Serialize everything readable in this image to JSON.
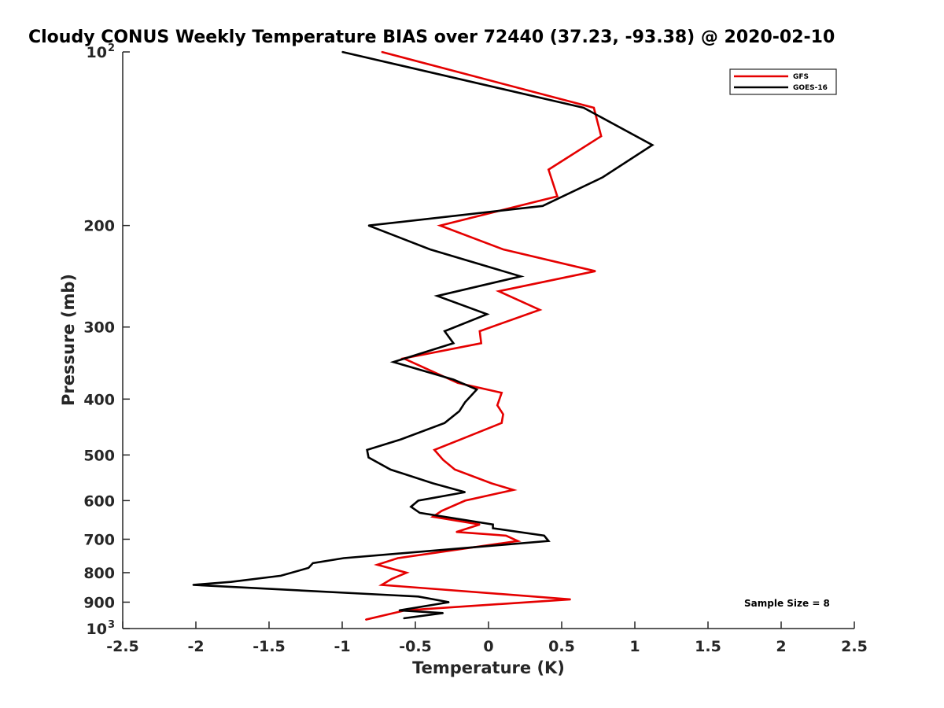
{
  "chart_data": {
    "type": "line",
    "title": "Cloudy CONUS Weekly Temperature BIAS over 72440 (37.23, -93.38) @ 2020-02-10",
    "xlabel": "Temperature (K)",
    "ylabel": "Pressure (mb)",
    "xlim": [
      -2.5,
      2.5
    ],
    "ylim": [
      100,
      1000
    ],
    "yscale": "log",
    "y_reversed": true,
    "grid": false,
    "legend_position": "top-right",
    "x_ticks": [
      -2.5,
      -2,
      -1.5,
      -1,
      -0.5,
      0,
      0.5,
      1,
      1.5,
      2,
      2.5
    ],
    "x_tick_labels": [
      "-2.5",
      "-2",
      "-1.5",
      "-1",
      "-0.5",
      "0",
      "0.5",
      "1",
      "1.5",
      "2",
      "2.5"
    ],
    "y_ticks": [
      {
        "value": 100,
        "label": "10",
        "sup": "2"
      },
      {
        "value": 200,
        "label": "200"
      },
      {
        "value": 300,
        "label": "300"
      },
      {
        "value": 400,
        "label": "400"
      },
      {
        "value": 500,
        "label": "500"
      },
      {
        "value": 600,
        "label": "600"
      },
      {
        "value": 700,
        "label": "700"
      },
      {
        "value": 800,
        "label": "800"
      },
      {
        "value": 900,
        "label": "900"
      },
      {
        "value": 1000,
        "label": "10",
        "sup": "3"
      }
    ],
    "series": [
      {
        "name": "GFS",
        "color": "#e50000",
        "points": [
          [
            -0.73,
            100
          ],
          [
            0.72,
            125
          ],
          [
            0.77,
            140
          ],
          [
            0.41,
            160
          ],
          [
            0.47,
            178
          ],
          [
            -0.33,
            200
          ],
          [
            0.1,
            220
          ],
          [
            0.73,
            240
          ],
          [
            0.07,
            260
          ],
          [
            0.35,
            280
          ],
          [
            -0.06,
            305
          ],
          [
            -0.05,
            320
          ],
          [
            -0.58,
            340
          ],
          [
            -0.21,
            375
          ],
          [
            0.09,
            390
          ],
          [
            0.06,
            410
          ],
          [
            0.1,
            425
          ],
          [
            0.09,
            440
          ],
          [
            -0.19,
            470
          ],
          [
            -0.37,
            490
          ],
          [
            -0.31,
            510
          ],
          [
            -0.23,
            530
          ],
          [
            0.02,
            560
          ],
          [
            0.17,
            575
          ],
          [
            -0.16,
            600
          ],
          [
            -0.32,
            625
          ],
          [
            -0.38,
            640
          ],
          [
            -0.06,
            660
          ],
          [
            -0.22,
            680
          ],
          [
            0.12,
            690
          ],
          [
            0.2,
            705
          ],
          [
            -0.62,
            755
          ],
          [
            -0.76,
            775
          ],
          [
            -0.56,
            800
          ],
          [
            -0.66,
            820
          ],
          [
            -0.73,
            840
          ],
          [
            0.56,
            890
          ],
          [
            -0.57,
            930
          ],
          [
            -0.84,
            965
          ]
        ]
      },
      {
        "name": "GOES-16",
        "color": "#000000",
        "points": [
          [
            -1.0,
            100
          ],
          [
            0.65,
            125
          ],
          [
            1.12,
            145
          ],
          [
            0.78,
            165
          ],
          [
            0.37,
            185
          ],
          [
            -0.82,
            200
          ],
          [
            -0.4,
            220
          ],
          [
            0.22,
            245
          ],
          [
            -0.35,
            265
          ],
          [
            -0.01,
            285
          ],
          [
            -0.3,
            305
          ],
          [
            -0.24,
            320
          ],
          [
            -0.65,
            345
          ],
          [
            -0.24,
            370
          ],
          [
            -0.08,
            385
          ],
          [
            -0.16,
            405
          ],
          [
            -0.2,
            420
          ],
          [
            -0.3,
            440
          ],
          [
            -0.6,
            470
          ],
          [
            -0.83,
            490
          ],
          [
            -0.82,
            505
          ],
          [
            -0.67,
            530
          ],
          [
            -0.38,
            560
          ],
          [
            -0.16,
            580
          ],
          [
            -0.48,
            600
          ],
          [
            -0.53,
            615
          ],
          [
            -0.47,
            630
          ],
          [
            0.03,
            660
          ],
          [
            0.03,
            670
          ],
          [
            0.38,
            690
          ],
          [
            0.41,
            705
          ],
          [
            -0.99,
            755
          ],
          [
            -1.2,
            770
          ],
          [
            -1.23,
            785
          ],
          [
            -1.42,
            810
          ],
          [
            -1.76,
            830
          ],
          [
            -2.02,
            840
          ],
          [
            -0.48,
            880
          ],
          [
            -0.27,
            900
          ],
          [
            -0.61,
            930
          ],
          [
            -0.31,
            940
          ],
          [
            -0.58,
            960
          ]
        ]
      }
    ],
    "annotations": [
      {
        "text": "Sample Size = 8"
      }
    ]
  },
  "legend": {
    "items": [
      {
        "label": "GFS",
        "color": "#e50000"
      },
      {
        "label": "GOES-16",
        "color": "#000000"
      }
    ]
  }
}
